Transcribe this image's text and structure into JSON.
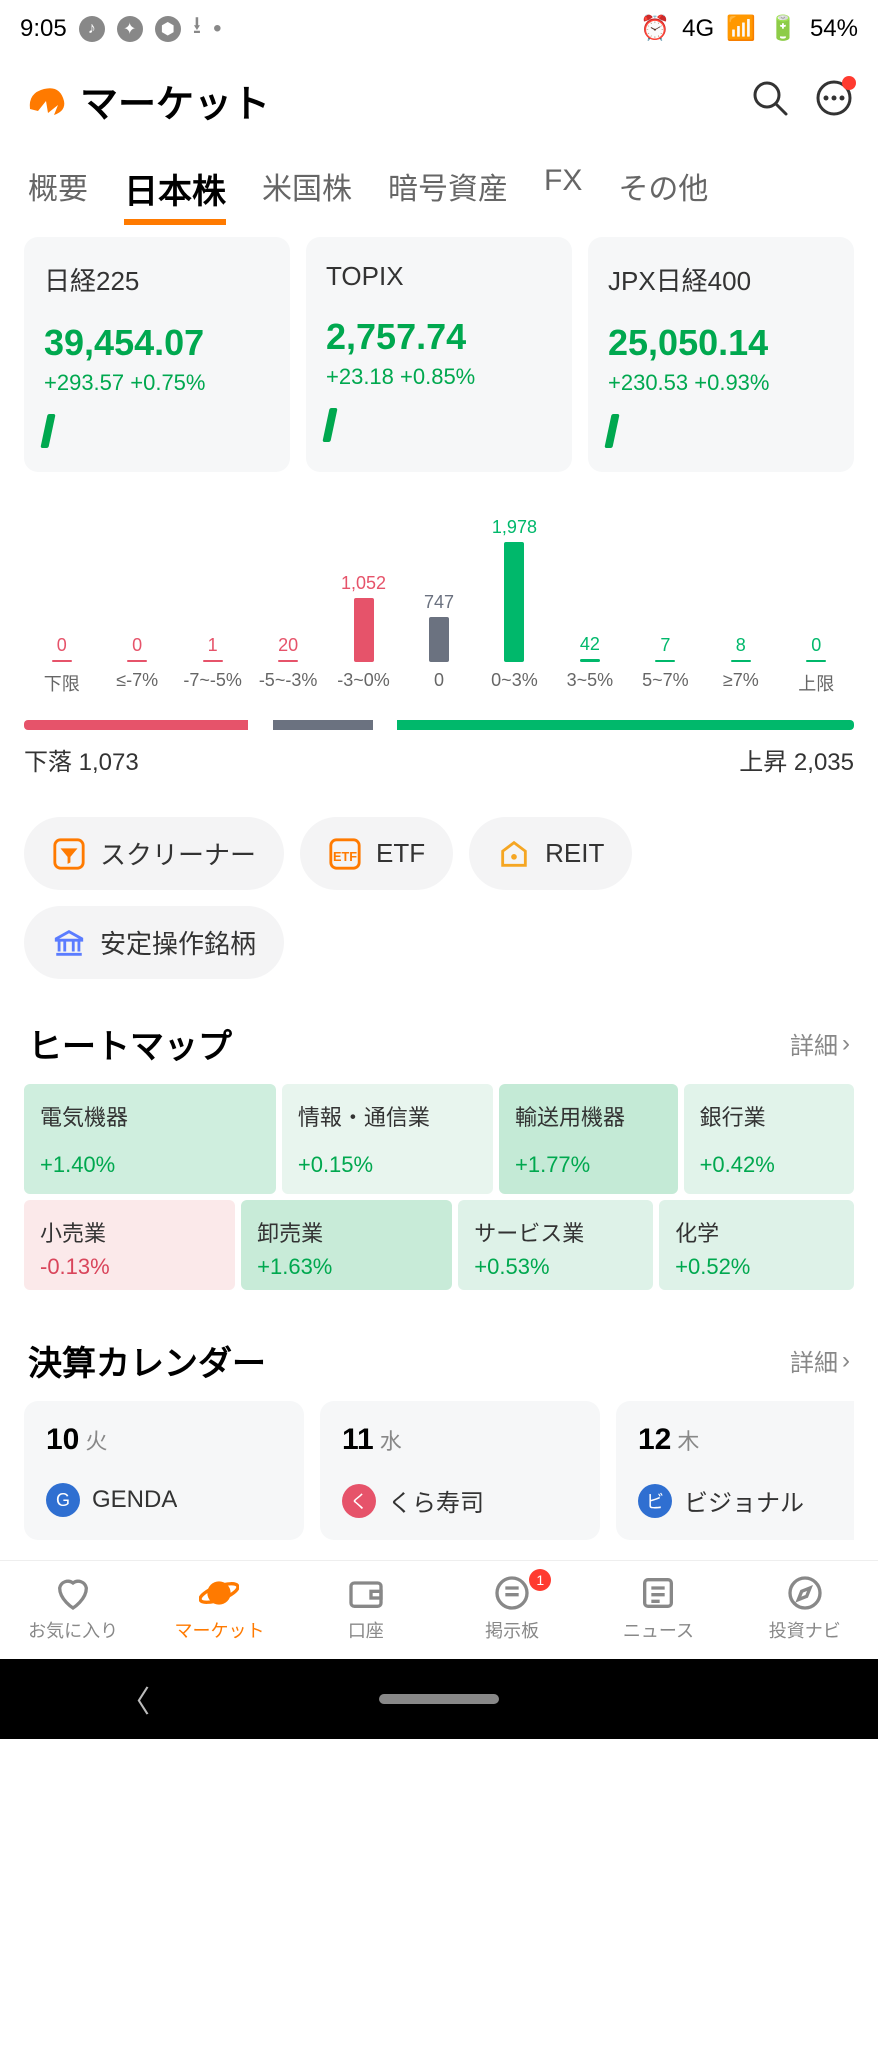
{
  "status": {
    "time": "9:05",
    "net": "4G",
    "battery": "54%"
  },
  "header": {
    "title": "マーケット"
  },
  "tabs": [
    "概要",
    "日本株",
    "米国株",
    "暗号資産",
    "FX",
    "その他"
  ],
  "activeTab": 1,
  "indices": [
    {
      "name": "日経225",
      "value": "39,454.07",
      "delta": "+293.57  +0.75%"
    },
    {
      "name": "TOPIX",
      "value": "2,757.74",
      "delta": "+23.18  +0.85%"
    },
    {
      "name": "JPX日経400",
      "value": "25,050.14",
      "delta": "+230.53  +0.93%"
    }
  ],
  "histogram": {
    "labels": [
      "下限",
      "≤-7%",
      "-7~-5%",
      "-5~-3%",
      "-3~0%",
      "0",
      "0~3%",
      "3~5%",
      "5~7%",
      "≥7%",
      "上限"
    ],
    "values": [
      0,
      0,
      1,
      20,
      1052,
      747,
      1978,
      42,
      7,
      8,
      0
    ],
    "colors": [
      "#e6536a",
      "#e6536a",
      "#e6536a",
      "#e6536a",
      "#e6536a",
      "#6b7280",
      "#00b86b",
      "#00b86b",
      "#00b86b",
      "#00b86b",
      "#00b86b"
    ],
    "valColors": [
      "#e6536a",
      "#e6536a",
      "#e6536a",
      "#e6536a",
      "#e6536a",
      "#6b7280",
      "#00b86b",
      "#00b86b",
      "#00b86b",
      "#00b86b",
      "#00b86b"
    ],
    "max": 1978,
    "downLabel": "下落 1,073",
    "upLabel": "上昇 2,035",
    "ratio": [
      {
        "w": 27,
        "c": "#e6536a"
      },
      {
        "w": 3,
        "c": "#ffffff"
      },
      {
        "w": 12,
        "c": "#6b7280"
      },
      {
        "w": 3,
        "c": "#ffffff"
      },
      {
        "w": 55,
        "c": "#00b86b"
      }
    ]
  },
  "chips": [
    {
      "icon": "filter",
      "label": "スクリーナー",
      "color": "#ff7a00"
    },
    {
      "icon": "etf",
      "label": "ETF",
      "color": "#ff7a00"
    },
    {
      "icon": "reit",
      "label": "REIT",
      "color": "#f5a623"
    },
    {
      "icon": "bank",
      "label": "安定操作銘柄",
      "color": "#5b7cff"
    }
  ],
  "heatmapTitle": "ヒートマップ",
  "detailLabel": "詳細",
  "heatmap": {
    "row1": [
      {
        "name": "電気機器",
        "val": "+1.40%",
        "bg": "#cfeede",
        "vc": "#00a84f",
        "flex": 1.35
      },
      {
        "name": "情報・通信業",
        "val": "+0.15%",
        "bg": "#e8f5ee",
        "vc": "#00a84f",
        "flex": 1.1
      },
      {
        "name": "輸送用機器",
        "val": "+1.77%",
        "bg": "#c4ead6",
        "vc": "#00a84f",
        "flex": 0.9
      },
      {
        "name": "銀行業",
        "val": "+0.42%",
        "bg": "#e1f3ea",
        "vc": "#00a84f",
        "flex": 0.85
      }
    ],
    "row2": [
      {
        "name": "小売業",
        "val": "-0.13%",
        "bg": "#fbe9ea",
        "vc": "#d9455b",
        "flex": 1.1
      },
      {
        "name": "卸売業",
        "val": "+1.63%",
        "bg": "#c8ebd8",
        "vc": "#00a84f",
        "flex": 1.1
      },
      {
        "name": "サービス業",
        "val": "+0.53%",
        "bg": "#def2e8",
        "vc": "#00a84f",
        "flex": 1
      },
      {
        "name": "化学",
        "val": "+0.52%",
        "bg": "#def2e8",
        "vc": "#00a84f",
        "flex": 1
      }
    ]
  },
  "calendarTitle": "決算カレンダー",
  "calendar": [
    {
      "day": "10",
      "dow": "火",
      "badge": "G",
      "bcolor": "#2f6fd1",
      "company": "GENDA"
    },
    {
      "day": "11",
      "dow": "水",
      "badge": "く",
      "bcolor": "#e6536a",
      "company": "くら寿司"
    },
    {
      "day": "12",
      "dow": "木",
      "badge": "ビ",
      "bcolor": "#2f6fd1",
      "company": "ビジョナル"
    }
  ],
  "bottomNav": [
    {
      "label": "お気に入り",
      "icon": "heart"
    },
    {
      "label": "マーケット",
      "icon": "planet"
    },
    {
      "label": "口座",
      "icon": "wallet"
    },
    {
      "label": "掲示板",
      "icon": "board",
      "badge": "1"
    },
    {
      "label": "ニュース",
      "icon": "news"
    },
    {
      "label": "投資ナビ",
      "icon": "compass"
    }
  ],
  "activeNav": 1
}
